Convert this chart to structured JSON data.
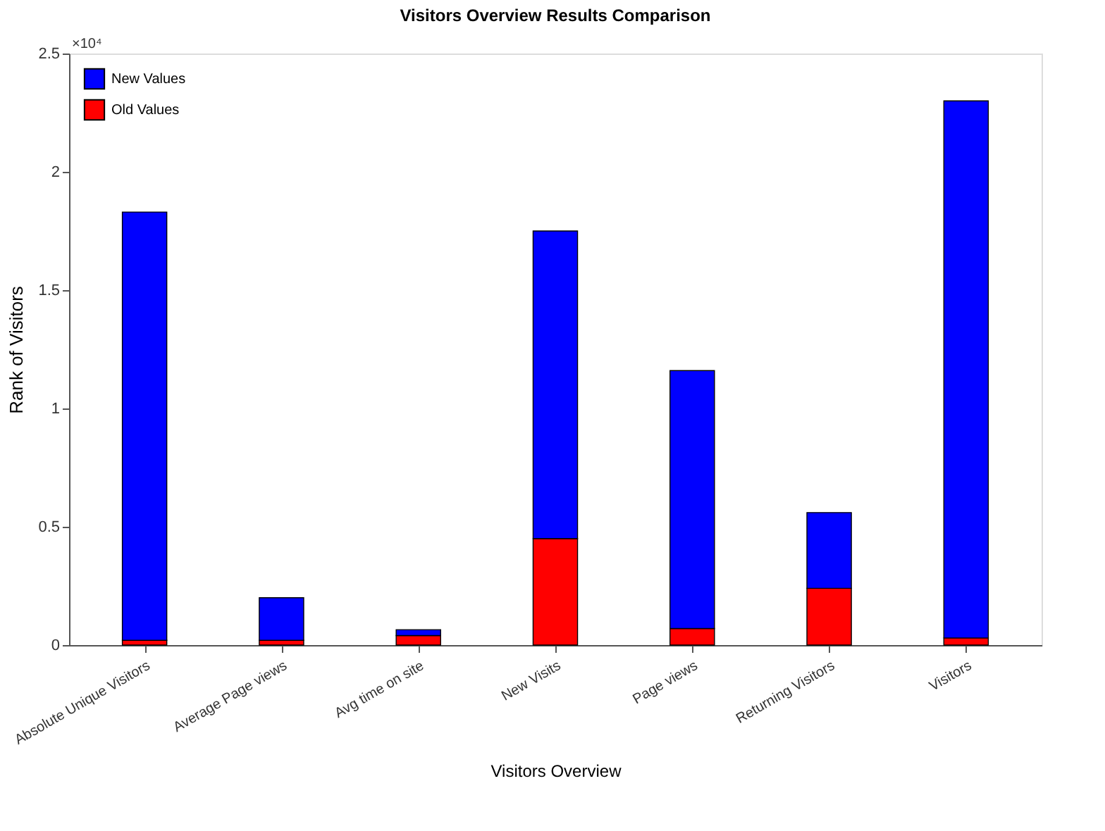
{
  "chart_data": {
    "type": "bar",
    "title": "Visitors Overview Results Comparison",
    "xlabel": "Visitors Overview",
    "ylabel": "Rank of Visitors",
    "categories": [
      "Absolute Unique Visitors",
      "Average Page views",
      "Avg time on site",
      "New Visits",
      "Page views",
      "Returning Visitors",
      "Visitors"
    ],
    "series": [
      {
        "name": "Old Values",
        "color": "#ff0000",
        "values": [
          0.02,
          0.02,
          0.04,
          0.45,
          0.07,
          0.24,
          0.03
        ]
      },
      {
        "name": "New Values",
        "color": "#0000ff",
        "values": [
          1.81,
          0.18,
          0.025,
          1.3,
          1.09,
          0.32,
          2.27
        ]
      }
    ],
    "stacked": true,
    "ylim": [
      0,
      2.5
    ],
    "yticks": [
      0,
      0.5,
      1,
      1.5,
      2,
      2.5
    ],
    "annotations": [
      "×10⁴"
    ],
    "legend": "top left",
    "grid": false
  }
}
